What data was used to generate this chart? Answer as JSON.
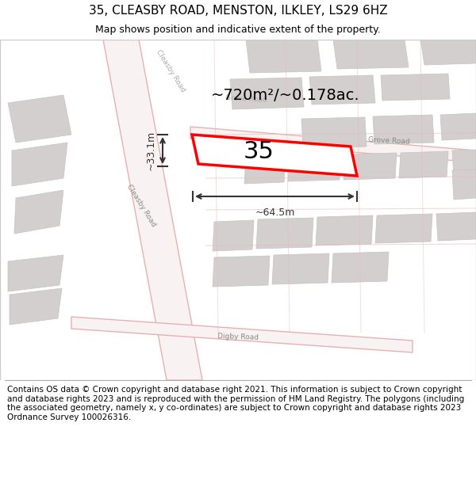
{
  "title": "35, CLEASBY ROAD, MENSTON, ILKLEY, LS29 6HZ",
  "subtitle": "Map shows position and indicative extent of the property.",
  "footer": "Contains OS data © Crown copyright and database right 2021. This information is subject to Crown copyright and database rights 2023 and is reproduced with the permission of HM Land Registry. The polygons (including the associated geometry, namely x, y co-ordinates) are subject to Crown copyright and database rights 2023 Ordnance Survey 100026316.",
  "area_label": "~720m²/~0.178ac.",
  "width_label": "~64.5m",
  "height_label": "~33.1m",
  "number_label": "35",
  "bg_color": "#f5f0f0",
  "map_bg": "#f0eeee",
  "road_color": "#e8c8c8",
  "road_fill": "#f7f0f0",
  "building_color": "#d4d0d0",
  "red_outline": "#ff0000",
  "dark_color": "#333333",
  "title_fontsize": 11,
  "subtitle_fontsize": 9,
  "footer_fontsize": 7.5
}
